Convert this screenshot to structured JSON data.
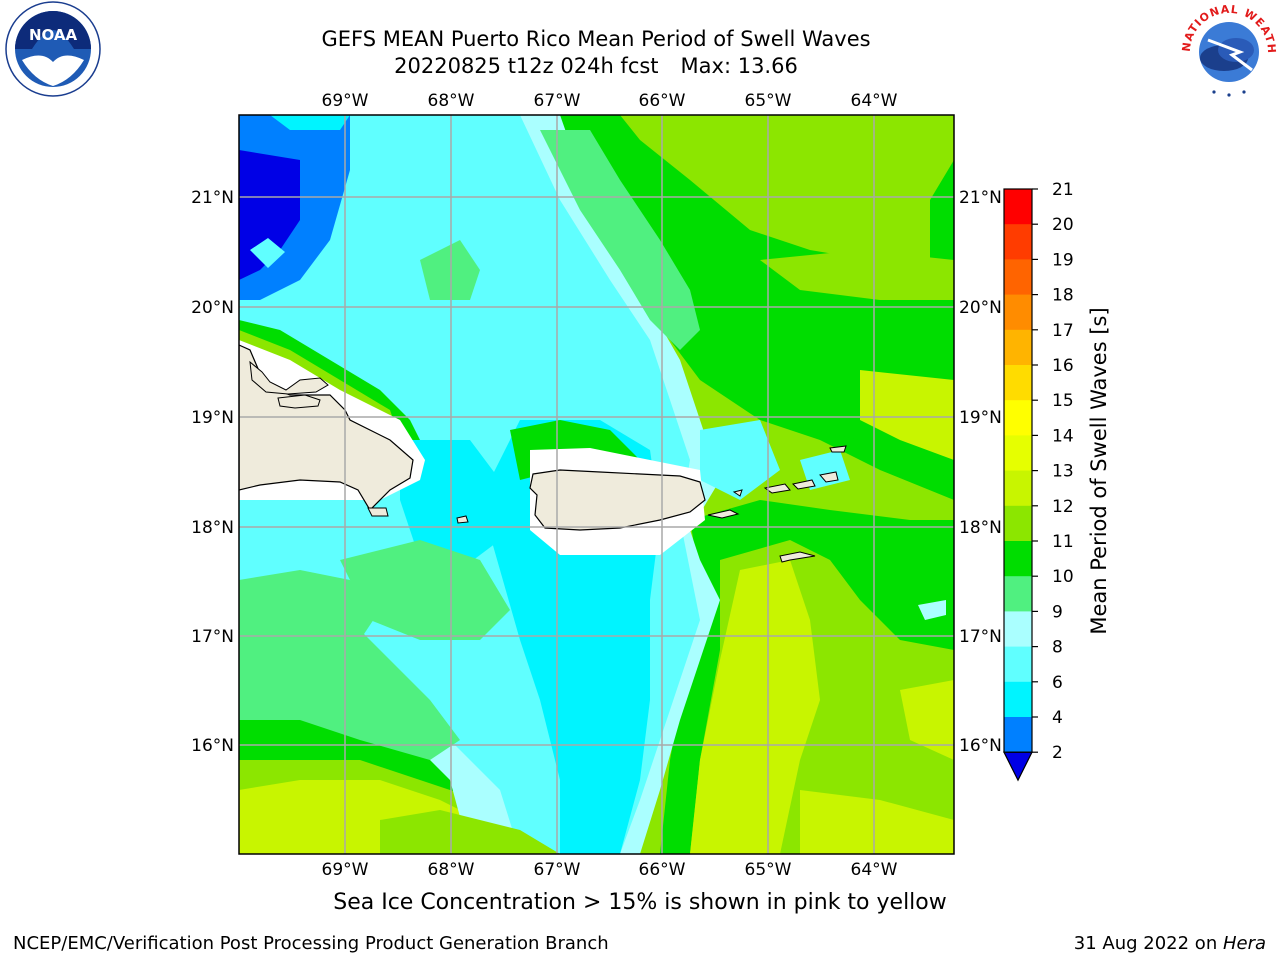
{
  "title": {
    "line1": "GEFS MEAN Puerto Rico Mean Period of Swell Waves",
    "date_run": "20220825 t12z 024h fcst",
    "max_label": "Max: 13.66"
  },
  "logos": {
    "left": "noaa-logo",
    "right": "national-weather-service-logo",
    "right_text": "NATIONAL WEATHER SERVICE",
    "left_text": "NOAA"
  },
  "map": {
    "lon_labels": [
      "69°W",
      "68°W",
      "67°W",
      "66°W",
      "65°W",
      "64°W"
    ],
    "lat_labels": [
      "21°N",
      "20°N",
      "19°N",
      "18°N",
      "17°N",
      "16°N"
    ],
    "grid": true,
    "land_color": "#efebdc",
    "coast_color": "#000000"
  },
  "colorbar": {
    "label": "Mean Period of Swell Waves [s]",
    "ticks": [
      "21",
      "20",
      "19",
      "18",
      "17",
      "16",
      "15",
      "14",
      "13",
      "12",
      "11",
      "10",
      "9",
      "8",
      "6",
      "4",
      "2"
    ],
    "colors": [
      "#ff0000",
      "#ff3c00",
      "#ff6400",
      "#ff8c00",
      "#ffb400",
      "#ffdc00",
      "#ffff00",
      "#e6ff00",
      "#c8f500",
      "#8ce600",
      "#00dd00",
      "#50f080",
      "#aaffff",
      "#60ffff",
      "#00f4ff",
      "#0080ff",
      "#0000e6"
    ],
    "extend": "min"
  },
  "footer": {
    "seaice": "Sea Ice Concentration > 15% is shown in pink to yellow",
    "left": "NCEP/EMC/Verification Post Processing Product Generation Branch",
    "right_date": "31 Aug 2022 on ",
    "right_host": "Hera"
  }
}
